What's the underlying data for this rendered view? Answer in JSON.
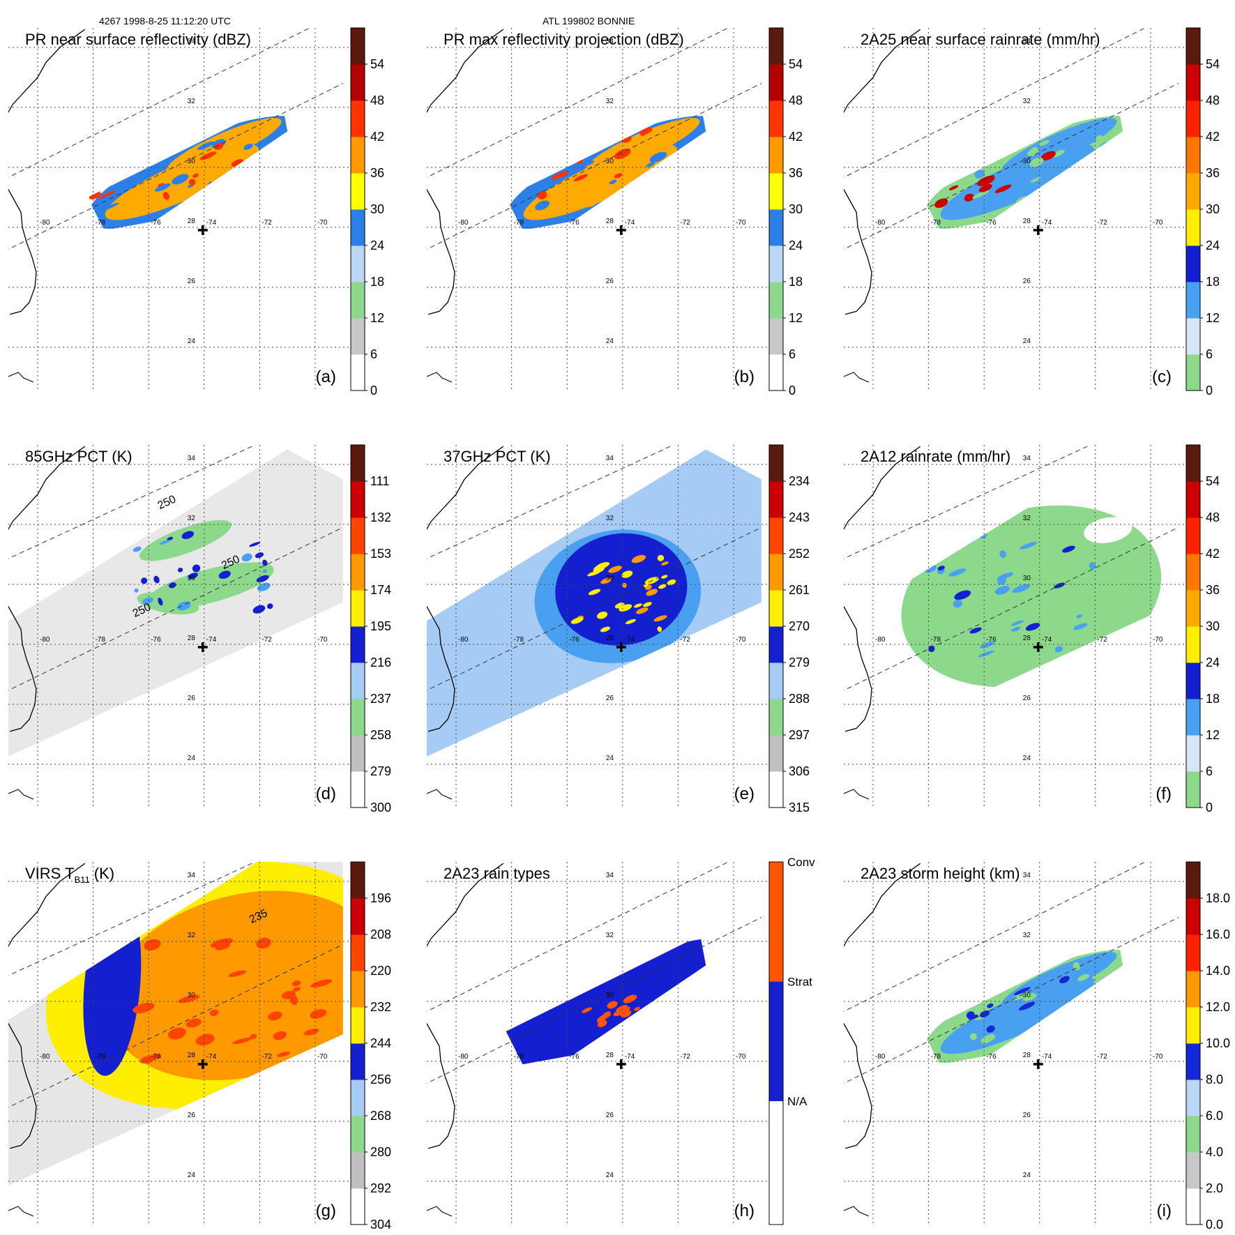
{
  "header": {
    "orbit_time": "4267 1998-8-25 11:12:20 UTC",
    "storm": "ATL 199802 BONNIE"
  },
  "map": {
    "lon_ticks": [
      "-80",
      "-78",
      "-76",
      "-74",
      "-72",
      "-70"
    ],
    "lat_ticks": [
      "34",
      "32",
      "30",
      "28",
      "26",
      "24"
    ],
    "storm_center": {
      "lon": -74.0,
      "lat": 28.0
    }
  },
  "chart_data": [
    {
      "type": "heatmap",
      "title": "PR near surface reflectivity (dBZ)",
      "panel_label": "(a)",
      "swath": "pr",
      "colorbar": {
        "ticks": [
          "0",
          "6",
          "12",
          "18",
          "24",
          "30",
          "36",
          "42",
          "48",
          "54"
        ],
        "kind": "dbz"
      }
    },
    {
      "type": "heatmap",
      "title": "PR max reflectivity projection (dBZ)",
      "panel_label": "(b)",
      "swath": "pr",
      "colorbar": {
        "ticks": [
          "0",
          "6",
          "12",
          "18",
          "24",
          "30",
          "36",
          "42",
          "48",
          "54"
        ],
        "kind": "dbz"
      }
    },
    {
      "type": "heatmap",
      "title": "2A25 near surface rainrate (mm/hr)",
      "panel_label": "(c)",
      "swath": "pr",
      "colorbar": {
        "ticks": [
          "0",
          "6",
          "12",
          "18",
          "24",
          "30",
          "36",
          "42",
          "48",
          "54"
        ],
        "kind": "rain"
      }
    },
    {
      "type": "heatmap",
      "title": "85GHz PCT (K)",
      "panel_label": "(d)",
      "swath": "tmi",
      "colorbar": {
        "ticks": [
          "300",
          "279",
          "258",
          "237",
          "216",
          "195",
          "174",
          "153",
          "132",
          "111"
        ],
        "kind": "pct"
      },
      "contour_labels": [
        "250",
        "250",
        "250"
      ]
    },
    {
      "type": "heatmap",
      "title": "37GHz PCT (K)",
      "panel_label": "(e)",
      "swath": "tmi",
      "colorbar": {
        "ticks": [
          "315",
          "306",
          "297",
          "288",
          "279",
          "270",
          "261",
          "252",
          "243",
          "234"
        ],
        "kind": "pct"
      }
    },
    {
      "type": "heatmap",
      "title": "2A12 rainrate (mm/hr)",
      "panel_label": "(f)",
      "swath": "tmi",
      "colorbar": {
        "ticks": [
          "0",
          "6",
          "12",
          "18",
          "24",
          "30",
          "36",
          "42",
          "48",
          "54"
        ],
        "kind": "rain"
      }
    },
    {
      "type": "heatmap",
      "title": "VIRS T",
      "title_sub": "B11",
      "title_end": " (K)",
      "panel_label": "(g)",
      "swath": "virs",
      "colorbar": {
        "ticks": [
          "304",
          "292",
          "280",
          "268",
          "256",
          "244",
          "232",
          "220",
          "208",
          "196"
        ],
        "kind": "pct"
      },
      "contour_labels": [
        "235"
      ]
    },
    {
      "type": "heatmap",
      "title": "2A23 rain types",
      "panel_label": "(h)",
      "swath": "pr",
      "colorbar": {
        "ticks": [
          "N/A",
          "Strat",
          "Conv"
        ],
        "kind": "category"
      }
    },
    {
      "type": "heatmap",
      "title": "2A23 storm height (km)",
      "panel_label": "(i)",
      "swath": "pr",
      "colorbar": {
        "ticks": [
          "0.0",
          "2.0",
          "4.0",
          "6.0",
          "8.0",
          "10.0",
          "12.0",
          "14.0",
          "16.0",
          "18.0"
        ],
        "kind": "height"
      }
    }
  ]
}
